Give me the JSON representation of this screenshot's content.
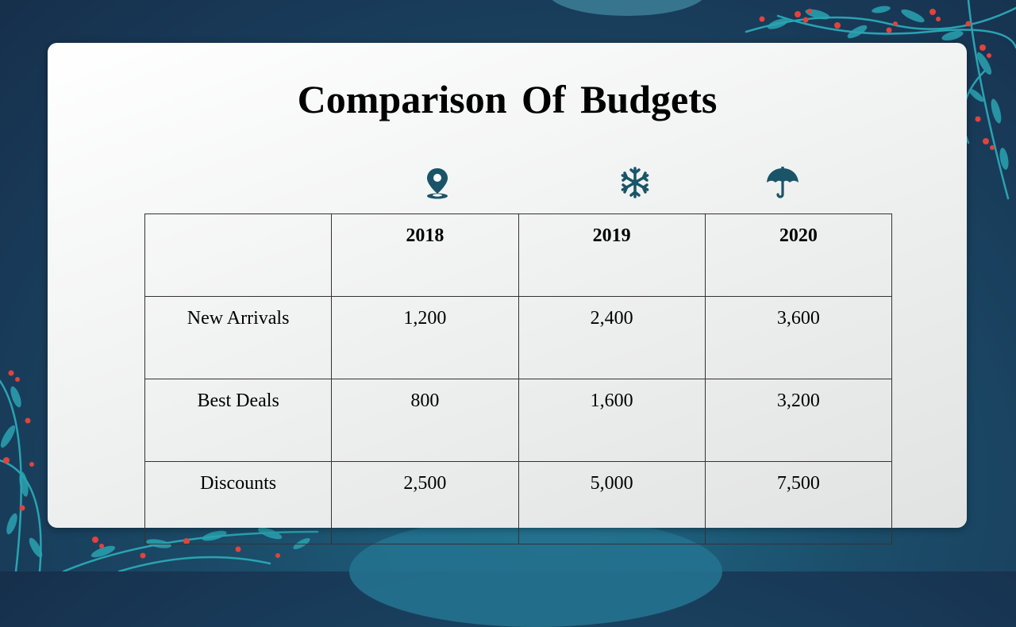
{
  "slide": {
    "title": "Comparison Of Budgets"
  },
  "icons": [
    "location-pin-icon",
    "snowflake-icon",
    "umbrella-icon"
  ],
  "colors": {
    "accent": "#1a5468",
    "background": "#183a58",
    "berry": "#e0443c",
    "leaf": "#2aa3b1"
  },
  "table": {
    "headers": [
      "",
      "2018",
      "2019",
      "2020"
    ],
    "rows": [
      {
        "label": "New Arrivals",
        "values": [
          "1,200",
          "2,400",
          "3,600"
        ]
      },
      {
        "label": "Best Deals",
        "values": [
          "800",
          "1,600",
          "3,200"
        ]
      },
      {
        "label": "Discounts",
        "values": [
          "2,500",
          "5,000",
          "7,500"
        ]
      }
    ]
  }
}
